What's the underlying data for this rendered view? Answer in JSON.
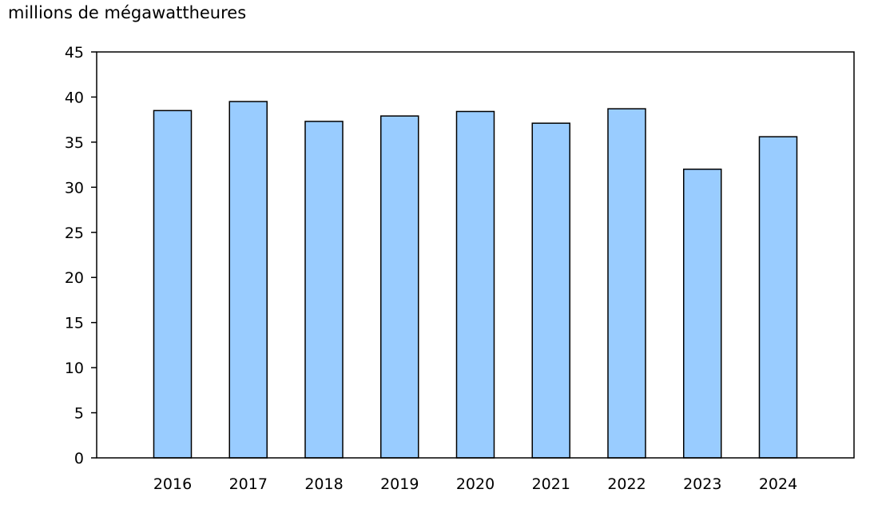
{
  "chart_data": {
    "type": "bar",
    "ylabel": "millions de mégawattheures",
    "categories": [
      "2016",
      "2017",
      "2018",
      "2019",
      "2020",
      "2021",
      "2022",
      "2023",
      "2024"
    ],
    "values": [
      38.5,
      39.5,
      37.3,
      37.9,
      38.4,
      37.1,
      38.7,
      32.0,
      35.6
    ],
    "ylim": [
      0,
      45
    ],
    "yticks": [
      "0",
      "5",
      "10",
      "15",
      "20",
      "25",
      "30",
      "35",
      "40",
      "45"
    ],
    "grid": false,
    "bar_color": "#99ccff",
    "bar_stroke": "#000000"
  }
}
